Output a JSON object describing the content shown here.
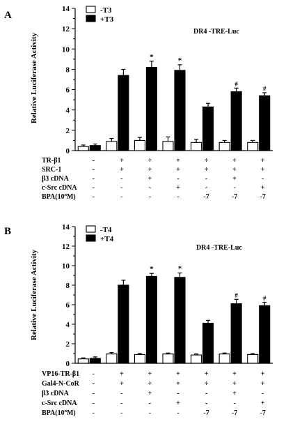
{
  "chart_data": [
    {
      "panel": "A",
      "type": "bar",
      "annotation": "DR4 -TRE-Luc",
      "ylabel": "Relative Luciferase Activity",
      "ylim": [
        0,
        14
      ],
      "yticks": [
        0,
        2,
        4,
        6,
        8,
        10,
        12,
        14
      ],
      "grid": false,
      "legend_position": "top-left",
      "series": [
        {
          "name": "-T3",
          "color": "#ffffff",
          "values": [
            0.4,
            0.9,
            1.0,
            0.9,
            0.8,
            0.8,
            0.8
          ],
          "errors": [
            0.15,
            0.3,
            0.3,
            0.45,
            0.3,
            0.2,
            0.2
          ]
        },
        {
          "name": "+T3",
          "color": "#000000",
          "values": [
            0.5,
            7.4,
            8.2,
            7.9,
            4.3,
            5.8,
            5.4
          ],
          "errors": [
            0.15,
            0.6,
            0.6,
            0.55,
            0.35,
            0.35,
            0.3
          ]
        }
      ],
      "markers": [
        "",
        "",
        "*",
        "*",
        "",
        "#",
        "#"
      ],
      "conditions": [
        {
          "label": "TR-β1",
          "values": [
            "-",
            "+",
            "+",
            "+",
            "+",
            "+",
            "+"
          ]
        },
        {
          "label": "SRC-1",
          "values": [
            "-",
            "+",
            "+",
            "+",
            "+",
            "+",
            "+"
          ]
        },
        {
          "label": "β3  cDNA",
          "values": [
            "-",
            "-",
            "+",
            "-",
            "-",
            "+",
            "-"
          ]
        },
        {
          "label": "c-Src cDNA",
          "values": [
            "-",
            "-",
            "-",
            "+",
            "-",
            "-",
            "+"
          ]
        },
        {
          "label": "BPA(10ⁿM)",
          "values": [
            "-",
            "-",
            "-",
            "-",
            "-7",
            "-7",
            "-7"
          ]
        }
      ]
    },
    {
      "panel": "B",
      "type": "bar",
      "annotation": "DR4 -TRE-Luc",
      "ylabel": "Relative Luciferase Activity",
      "ylim": [
        0,
        14
      ],
      "yticks": [
        0,
        2,
        4,
        6,
        8,
        10,
        12,
        14
      ],
      "grid": false,
      "legend_position": "top-left",
      "series": [
        {
          "name": "-T4",
          "color": "#ffffff",
          "values": [
            0.45,
            0.95,
            0.9,
            0.95,
            0.85,
            0.95,
            0.9
          ],
          "errors": [
            0.1,
            0.15,
            0.1,
            0.1,
            0.1,
            0.1,
            0.1
          ]
        },
        {
          "name": "+T4",
          "color": "#000000",
          "values": [
            0.5,
            8.0,
            8.9,
            8.8,
            4.1,
            6.1,
            5.9
          ],
          "errors": [
            0.15,
            0.5,
            0.3,
            0.45,
            0.3,
            0.45,
            0.35
          ]
        }
      ],
      "markers": [
        "",
        "",
        "*",
        "*",
        "",
        "#",
        "#"
      ],
      "conditions": [
        {
          "label": "VP16-TR-β1",
          "values": [
            "-",
            "+",
            "+",
            "+",
            "+",
            "+",
            "+"
          ]
        },
        {
          "label": "Gal4-N-CoR",
          "values": [
            "-",
            "+",
            "+",
            "+",
            "+",
            "+",
            "+"
          ]
        },
        {
          "label": "β3  cDNA",
          "values": [
            "-",
            "-",
            "+",
            "-",
            "-",
            "+",
            "-"
          ]
        },
        {
          "label": "c-Src cDNA",
          "values": [
            "-",
            "-",
            "-",
            "+",
            "-",
            "-",
            "+"
          ]
        },
        {
          "label": "BPA(10ⁿM)",
          "values": [
            "-",
            "-",
            "-",
            "-",
            "-7",
            "-7",
            "-7"
          ]
        }
      ]
    }
  ]
}
